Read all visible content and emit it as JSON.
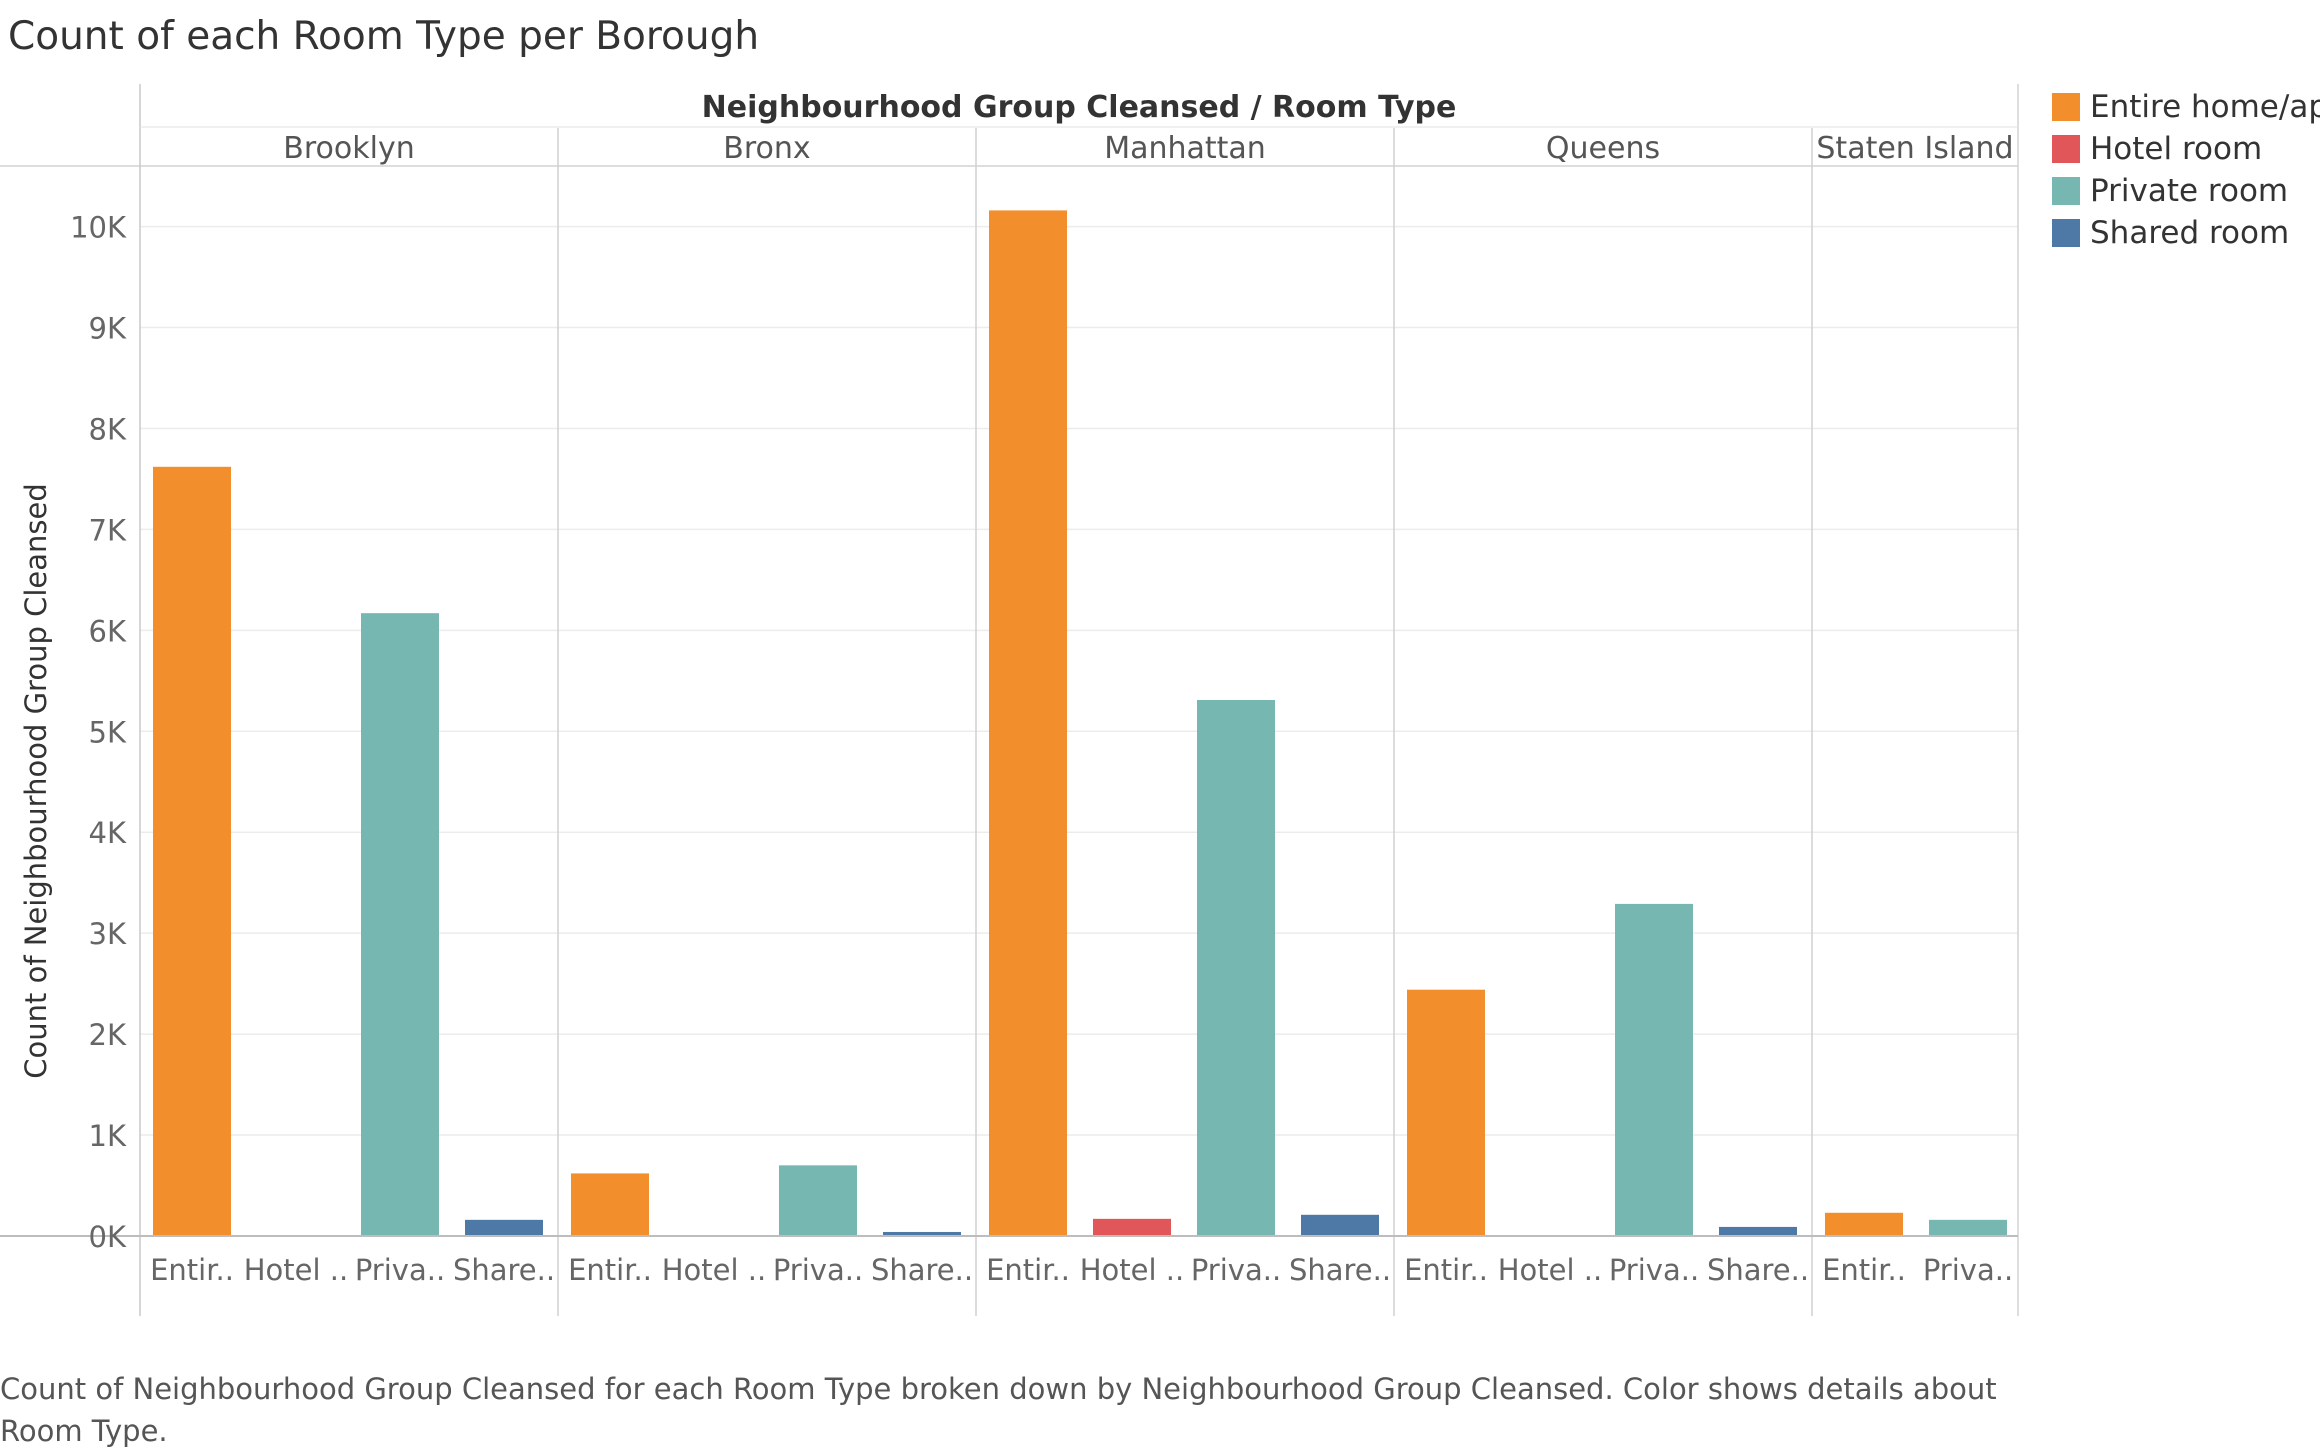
{
  "title": "Count of each Room Type per Borough",
  "caption": "Count of Neighbourhood Group Cleansed for each Room Type broken down by Neighbourhood Group Cleansed.  Color shows details about Room Type.",
  "chart_data": {
    "type": "bar",
    "header_title": "Neighbourhood Group Cleansed  /  Room Type",
    "ylabel": "Count of Neighbourhood Group Cleansed",
    "ylim": [
      0,
      10600
    ],
    "yticks": [
      {
        "value": 0,
        "label": "0K"
      },
      {
        "value": 1000,
        "label": "1K"
      },
      {
        "value": 2000,
        "label": "2K"
      },
      {
        "value": 3000,
        "label": "3K"
      },
      {
        "value": 4000,
        "label": "4K"
      },
      {
        "value": 5000,
        "label": "5K"
      },
      {
        "value": 6000,
        "label": "6K"
      },
      {
        "value": 7000,
        "label": "7K"
      },
      {
        "value": 8000,
        "label": "8K"
      },
      {
        "value": 9000,
        "label": "9K"
      },
      {
        "value": 10000,
        "label": "10K"
      }
    ],
    "grid": true,
    "legend_position": "right",
    "legend": [
      {
        "name": "Entire home/apt",
        "color": "#f28e2b"
      },
      {
        "name": "Hotel room",
        "color": "#e15759"
      },
      {
        "name": "Private room",
        "color": "#76b7b2"
      },
      {
        "name": "Shared room",
        "color": "#4e79a7"
      }
    ],
    "groups": [
      {
        "name": "Brooklyn",
        "bars": [
          {
            "type": "Entire home/apt",
            "label": "Entir..",
            "value": 7620
          },
          {
            "type": "Hotel room",
            "label": "Hotel ..",
            "value": 0
          },
          {
            "type": "Private room",
            "label": "Priva..",
            "value": 6170
          },
          {
            "type": "Shared room",
            "label": "Share..",
            "value": 160
          }
        ]
      },
      {
        "name": "Bronx",
        "bars": [
          {
            "type": "Entire home/apt",
            "label": "Entir..",
            "value": 620
          },
          {
            "type": "Hotel room",
            "label": "Hotel ..",
            "value": 0
          },
          {
            "type": "Private room",
            "label": "Priva..",
            "value": 700
          },
          {
            "type": "Shared room",
            "label": "Share..",
            "value": 40
          }
        ]
      },
      {
        "name": "Manhattan",
        "bars": [
          {
            "type": "Entire home/apt",
            "label": "Entir..",
            "value": 10160
          },
          {
            "type": "Hotel room",
            "label": "Hotel ..",
            "value": 170
          },
          {
            "type": "Private room",
            "label": "Priva..",
            "value": 5310
          },
          {
            "type": "Shared room",
            "label": "Share..",
            "value": 210
          }
        ]
      },
      {
        "name": "Queens",
        "bars": [
          {
            "type": "Entire home/apt",
            "label": "Entir..",
            "value": 2440
          },
          {
            "type": "Hotel room",
            "label": "Hotel ..",
            "value": 0
          },
          {
            "type": "Private room",
            "label": "Priva..",
            "value": 3290
          },
          {
            "type": "Shared room",
            "label": "Share..",
            "value": 90
          }
        ]
      },
      {
        "name": "Staten Island",
        "bars": [
          {
            "type": "Entire home/apt",
            "label": "Entir..",
            "value": 230
          },
          {
            "type": "Private room",
            "label": "Priva..",
            "value": 160
          }
        ]
      }
    ]
  }
}
